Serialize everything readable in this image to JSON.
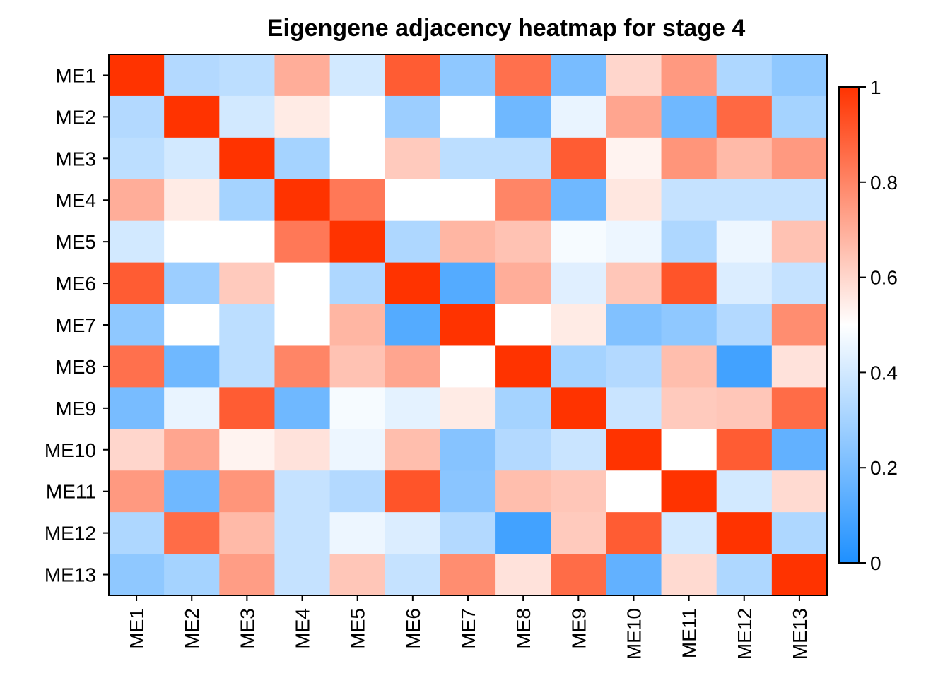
{
  "chart_data": {
    "type": "heatmap",
    "title": "Eigengene adjacency heatmap for stage  4",
    "xlabel": "",
    "ylabel": "",
    "x_categories": [
      "ME1",
      "ME2",
      "ME3",
      "ME4",
      "ME5",
      "ME6",
      "ME7",
      "ME8",
      "ME9",
      "ME10",
      "ME11",
      "ME12",
      "ME13"
    ],
    "y_categories": [
      "ME1",
      "ME2",
      "ME3",
      "ME4",
      "ME5",
      "ME6",
      "ME7",
      "ME8",
      "ME9",
      "ME10",
      "ME11",
      "ME12",
      "ME13"
    ],
    "values": [
      [
        1.0,
        0.33,
        0.35,
        0.7,
        0.4,
        0.9,
        0.25,
        0.85,
        0.2,
        0.6,
        0.75,
        0.32,
        0.25
      ],
      [
        0.33,
        1.0,
        0.4,
        0.55,
        0.5,
        0.28,
        0.5,
        0.18,
        0.45,
        0.72,
        0.18,
        0.87,
        0.3
      ],
      [
        0.35,
        0.4,
        1.0,
        0.3,
        0.5,
        0.63,
        0.35,
        0.35,
        0.9,
        0.53,
        0.76,
        0.67,
        0.75
      ],
      [
        0.7,
        0.55,
        0.3,
        1.0,
        0.83,
        0.5,
        0.5,
        0.8,
        0.18,
        0.56,
        0.37,
        0.37,
        0.37
      ],
      [
        0.4,
        0.5,
        0.5,
        0.83,
        1.0,
        0.32,
        0.68,
        0.65,
        0.48,
        0.46,
        0.32,
        0.46,
        0.65
      ],
      [
        0.9,
        0.28,
        0.63,
        0.5,
        0.32,
        1.0,
        0.12,
        0.7,
        0.43,
        0.64,
        0.92,
        0.42,
        0.37
      ],
      [
        0.25,
        0.5,
        0.35,
        0.5,
        0.68,
        0.12,
        1.0,
        0.5,
        0.55,
        0.22,
        0.25,
        0.33,
        0.78
      ],
      [
        0.85,
        0.18,
        0.35,
        0.8,
        0.65,
        0.72,
        0.5,
        1.0,
        0.3,
        0.33,
        0.66,
        0.08,
        0.57
      ],
      [
        0.2,
        0.45,
        0.9,
        0.18,
        0.48,
        0.44,
        0.55,
        0.3,
        1.0,
        0.38,
        0.63,
        0.64,
        0.86
      ],
      [
        0.6,
        0.72,
        0.53,
        0.57,
        0.46,
        0.66,
        0.23,
        0.33,
        0.38,
        1.0,
        0.5,
        0.9,
        0.15
      ],
      [
        0.75,
        0.18,
        0.76,
        0.37,
        0.33,
        0.92,
        0.24,
        0.66,
        0.64,
        0.5,
        1.0,
        0.4,
        0.59
      ],
      [
        0.32,
        0.86,
        0.67,
        0.37,
        0.46,
        0.42,
        0.33,
        0.08,
        0.63,
        0.9,
        0.4,
        1.0,
        0.32
      ],
      [
        0.25,
        0.3,
        0.74,
        0.37,
        0.64,
        0.37,
        0.78,
        0.57,
        0.86,
        0.15,
        0.59,
        0.32,
        1.0
      ]
    ],
    "scale": {
      "min": 0,
      "max": 1,
      "ticks": [
        0,
        0.2,
        0.4,
        0.6,
        0.8,
        1
      ],
      "tick_labels": [
        "0",
        "0.2",
        "0.4",
        "0.6",
        "0.8",
        "1"
      ],
      "colors": {
        "low": "#1E90FF",
        "mid": "#FFFFFF",
        "high": "#FF3300"
      }
    },
    "legend_position": "right",
    "grid": false
  }
}
